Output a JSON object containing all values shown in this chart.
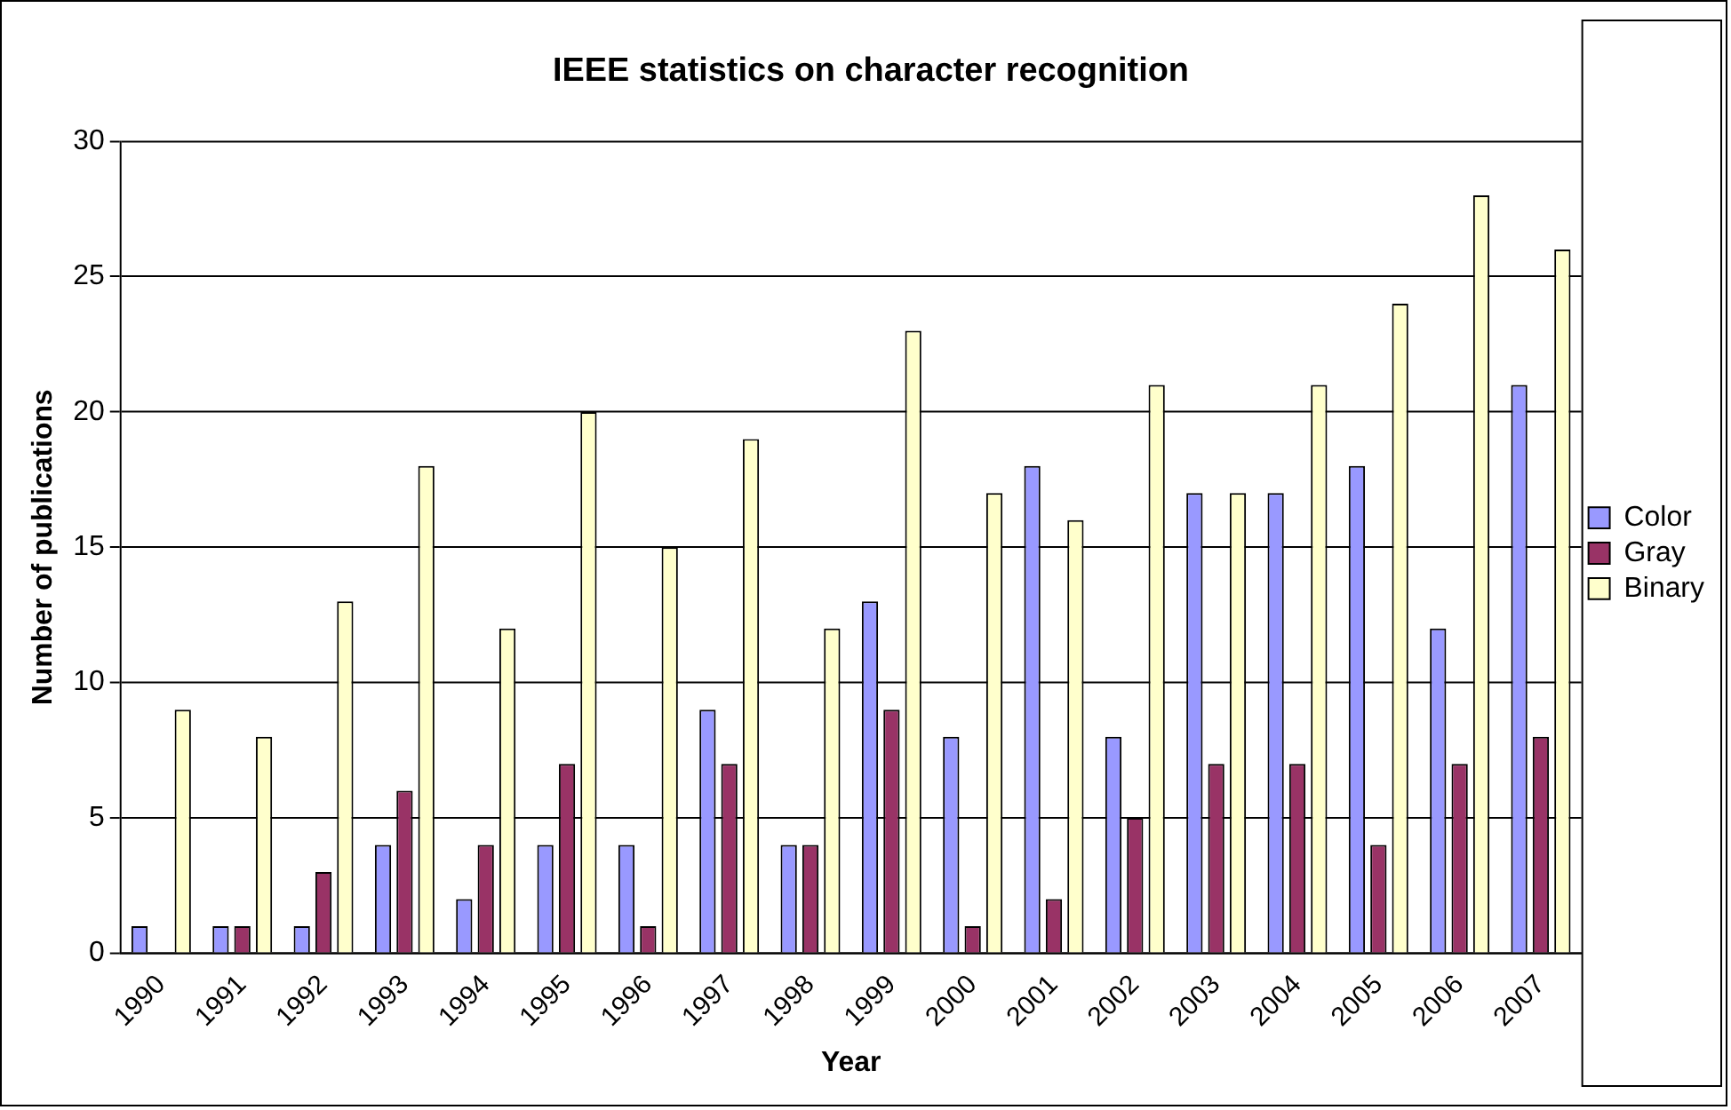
{
  "chart_data": {
    "type": "bar",
    "title": "IEEE statistics on character recognition",
    "xlabel": "Year",
    "ylabel": "Number of publications",
    "categories": [
      "1990",
      "1991",
      "1992",
      "1993",
      "1994",
      "1995",
      "1996",
      "1997",
      "1998",
      "1999",
      "2000",
      "2001",
      "2002",
      "2003",
      "2004",
      "2005",
      "2006",
      "2007"
    ],
    "series": [
      {
        "name": "Color",
        "color": "#9999ff",
        "values": [
          1,
          1,
          1,
          4,
          2,
          4,
          4,
          9,
          4,
          13,
          8,
          18,
          8,
          17,
          17,
          18,
          12,
          21
        ]
      },
      {
        "name": "Gray",
        "color": "#993366",
        "values": [
          0,
          1,
          3,
          6,
          4,
          7,
          1,
          7,
          4,
          9,
          1,
          2,
          5,
          7,
          7,
          4,
          7,
          8
        ]
      },
      {
        "name": "Binary",
        "color": "#ffffcc",
        "values": [
          9,
          8,
          13,
          18,
          12,
          20,
          15,
          19,
          12,
          23,
          17,
          16,
          21,
          17,
          21,
          24,
          28,
          26
        ]
      }
    ],
    "ylim": [
      0,
      30
    ],
    "yticks": [
      0,
      5,
      10,
      15,
      20,
      25,
      30
    ],
    "grid": "y",
    "legend": "right"
  }
}
